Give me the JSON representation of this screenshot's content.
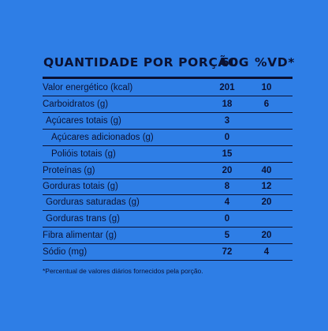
{
  "header": {
    "title": "QUANTIDADE POR PORÇÃO",
    "qty": "60g",
    "vd": "%VD*"
  },
  "rows": [
    {
      "label": "Valor energético (kcal)",
      "qty": "201",
      "vd": "10"
    },
    {
      "label": "Carboidratos (g)",
      "qty": "18",
      "vd": "6"
    },
    {
      "label": "Açúcares totais (g)",
      "qty": "3",
      "vd": ""
    },
    {
      "label": "Açúcares adicionados (g)",
      "qty": "0",
      "vd": ""
    },
    {
      "label": "Polióis totais (g)",
      "qty": "15",
      "vd": ""
    },
    {
      "label": "Proteínas (g)",
      "qty": "20",
      "vd": "40"
    },
    {
      "label": "Gorduras totais (g)",
      "qty": "8",
      "vd": "12"
    },
    {
      "label": "Gorduras saturadas (g)",
      "qty": "4",
      "vd": "20"
    },
    {
      "label": "Gorduras trans (g)",
      "qty": "0",
      "vd": ""
    },
    {
      "label": "Fibra alimentar (g)",
      "qty": "5",
      "vd": "20"
    },
    {
      "label": "Sódio (mg)",
      "qty": "72",
      "vd": "4"
    }
  ],
  "footnote": "*Percentual de valores diários fornecidos pela porção.",
  "colors": {
    "background": "#2e7ee6",
    "ink": "#0b1233"
  }
}
